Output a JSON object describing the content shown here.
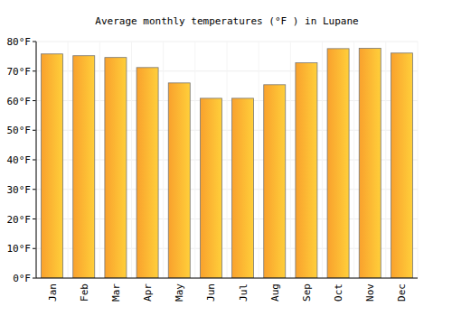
{
  "chart_data": {
    "type": "bar",
    "title": "Average monthly temperatures (°F ) in Lupane",
    "categories": [
      "Jan",
      "Feb",
      "Mar",
      "Apr",
      "May",
      "Jun",
      "Jul",
      "Aug",
      "Sep",
      "Oct",
      "Nov",
      "Dec"
    ],
    "values": [
      75.8,
      75.2,
      74.6,
      71.2,
      66.0,
      60.8,
      60.8,
      65.4,
      72.8,
      77.6,
      77.7,
      76.1
    ],
    "color": "#f9a12d",
    "ylim": [
      0,
      80
    ],
    "yticks": [
      {
        "value": 0,
        "label": "0°F"
      },
      {
        "value": 10,
        "label": "10°F"
      },
      {
        "value": 20,
        "label": "20°F"
      },
      {
        "value": 30,
        "label": "30°F"
      },
      {
        "value": 40,
        "label": "40°F"
      },
      {
        "value": 50,
        "label": "50°F"
      },
      {
        "value": 60,
        "label": "60°F"
      },
      {
        "value": 70,
        "label": "70°F"
      },
      {
        "value": 80,
        "label": "80°F"
      }
    ],
    "grid": true
  }
}
